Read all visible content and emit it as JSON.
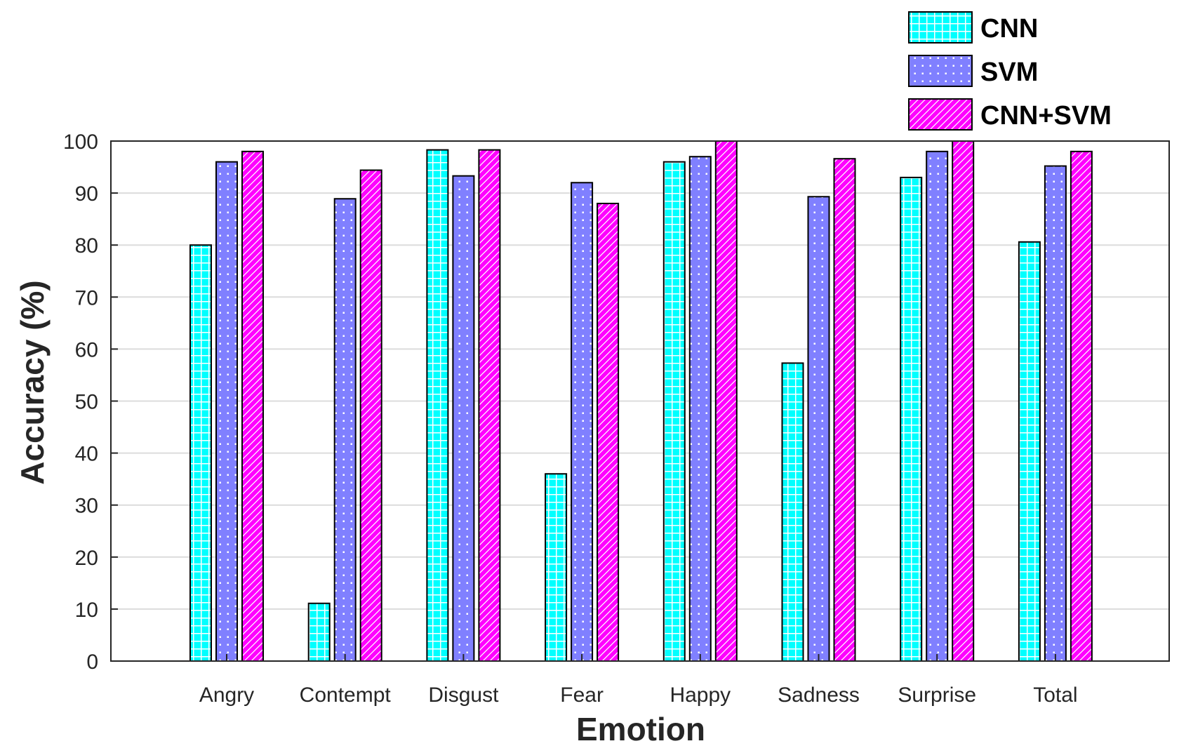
{
  "chart_data": {
    "type": "bar",
    "title": "",
    "xlabel": "Emotion",
    "ylabel": "Accuracy (%)",
    "ylim": [
      0,
      100
    ],
    "yticks": [
      "0",
      "10",
      "20",
      "30",
      "40",
      "50",
      "60",
      "70",
      "80",
      "90",
      "100"
    ],
    "grid": true,
    "legend_position": "top-right",
    "categories": [
      "Angry",
      "Contempt",
      "Disgust",
      "Fear",
      "Happy",
      "Sadness",
      "Surprise",
      "Total"
    ],
    "series": [
      {
        "name": "CNN",
        "color": "#00FFFF",
        "pattern": "grid",
        "values": [
          80.0,
          11.1,
          98.3,
          36.0,
          96.0,
          57.3,
          93.0,
          80.6
        ]
      },
      {
        "name": "SVM",
        "color": "#8080FF",
        "pattern": "dots",
        "values": [
          96.0,
          88.9,
          93.3,
          92.0,
          97.0,
          89.3,
          98.0,
          95.2
        ]
      },
      {
        "name": "CNN+SVM",
        "color": "#FF00FF",
        "pattern": "diagonal",
        "values": [
          98.0,
          94.4,
          98.3,
          88.0,
          100.0,
          96.6,
          100.0,
          98.0
        ]
      }
    ]
  }
}
